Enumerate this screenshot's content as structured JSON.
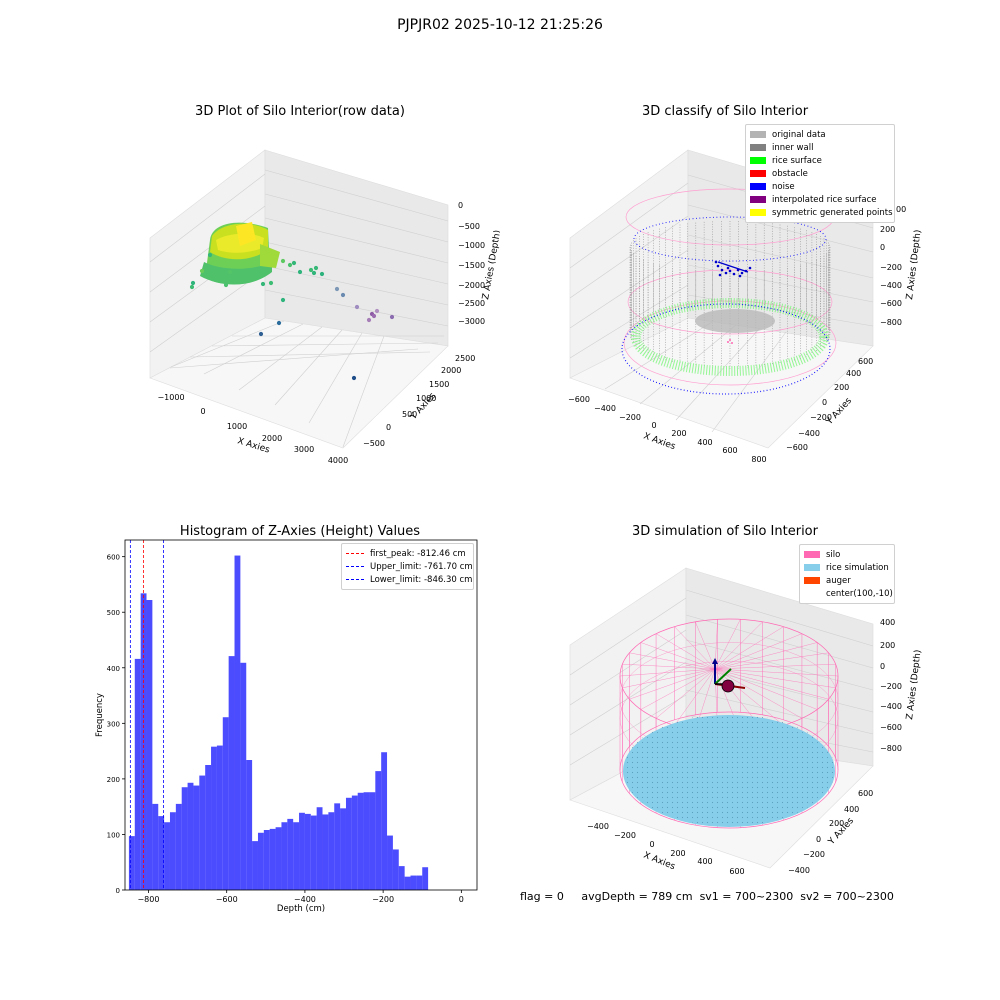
{
  "suptitle": "PJPJR02 2025-10-12 21:25:26",
  "panels": {
    "raw": {
      "title": "3D Plot of Silo Interior(row data)",
      "xlabel": "X Axies",
      "ylabel": "Y Axies",
      "zlabel": "Z Axies (Depth)",
      "xticks": [
        "−1000",
        "0",
        "1000",
        "2000",
        "3000",
        "4000"
      ],
      "yticks": [
        "−500",
        "0",
        "500",
        "1000",
        "1500",
        "2000",
        "2500"
      ],
      "zticks": [
        "0",
        "−500",
        "−1000",
        "−1500",
        "−2000",
        "−2500",
        "−3000"
      ]
    },
    "classify": {
      "title": "3D classify of Silo Interior",
      "xlabel": "X Axies",
      "ylabel": "Y Axies",
      "zlabel": "Z Axies (Depth)",
      "xticks": [
        "−600",
        "−400",
        "−200",
        "0",
        "200",
        "400",
        "600",
        "800"
      ],
      "yticks": [
        "−600",
        "−400",
        "−200",
        "0",
        "200",
        "400",
        "600"
      ],
      "zticks": [
        "200",
        "0",
        "−200",
        "−400",
        "−600",
        "−800"
      ],
      "partial_ztick": "00",
      "legend": [
        {
          "label": "original data",
          "color": "#b3b3b3"
        },
        {
          "label": "inner wall",
          "color": "#808080"
        },
        {
          "label": "rice surface",
          "color": "#00ff00"
        },
        {
          "label": "obstacle",
          "color": "#ff0000"
        },
        {
          "label": "noise",
          "color": "#0000ff"
        },
        {
          "label": "interpolated rice surface",
          "color": "#800080"
        },
        {
          "label": "symmetric generated points",
          "color": "#ffff00"
        }
      ]
    },
    "simulation": {
      "title": "3D simulation of Silo Interior",
      "xlabel": "X Axies",
      "ylabel": "Y Axies",
      "zlabel": "Z Axies (Depth)",
      "xticks": [
        "−400",
        "−200",
        "0",
        "200",
        "400",
        "600"
      ],
      "yticks": [
        "−400",
        "−200",
        "0",
        "200",
        "400",
        "600"
      ],
      "zticks": [
        "400",
        "200",
        "0",
        "−200",
        "−400",
        "−600",
        "−800"
      ],
      "legend": [
        {
          "label": "silo",
          "color": "#ff69b4"
        },
        {
          "label": "rice simulation",
          "color": "#87ceeb"
        },
        {
          "label": "auger",
          "color": "#ff4500"
        },
        {
          "label": "center(100,-10)",
          "color": "#ffffff"
        }
      ]
    }
  },
  "chart_data": {
    "type": "bar",
    "title": "Histogram of Z-Axies (Height) Values",
    "xlabel": "Depth (cm)",
    "ylabel": "Frequency",
    "xlim": [
      -860,
      40
    ],
    "ylim": [
      0,
      630
    ],
    "xticks": [
      -800,
      -600,
      -400,
      -200,
      0
    ],
    "yticks": [
      0,
      100,
      200,
      300,
      400,
      500,
      600
    ],
    "bar_color": "#0000ff",
    "bin_width": 15,
    "bin_start": -850,
    "values": [
      97,
      416,
      534,
      522,
      155,
      133,
      122,
      140,
      155,
      185,
      193,
      188,
      206,
      225,
      258,
      260,
      311,
      421,
      602,
      409,
      234,
      88,
      103,
      108,
      110,
      113,
      122,
      128,
      122,
      139,
      137,
      134,
      149,
      136,
      140,
      156,
      147,
      166,
      170,
      175,
      176,
      176,
      214,
      248,
      98,
      73,
      43,
      24,
      26,
      26,
      41
    ],
    "vlines": [
      {
        "label": "first_peak: -812.46 cm",
        "x": -812.46,
        "color": "#ff0000"
      },
      {
        "label": "Upper_limit: -761.70 cm",
        "x": -761.7,
        "color": "#0000ff"
      },
      {
        "label": "Lower_limit: -846.30 cm",
        "x": -846.3,
        "color": "#0000ff"
      }
    ]
  },
  "status": {
    "flag": "flag = 0",
    "avg_depth": "avgDepth = 789 cm",
    "sv1": "sv1 = 700~2300",
    "sv2": "sv2 = 700~2300"
  }
}
